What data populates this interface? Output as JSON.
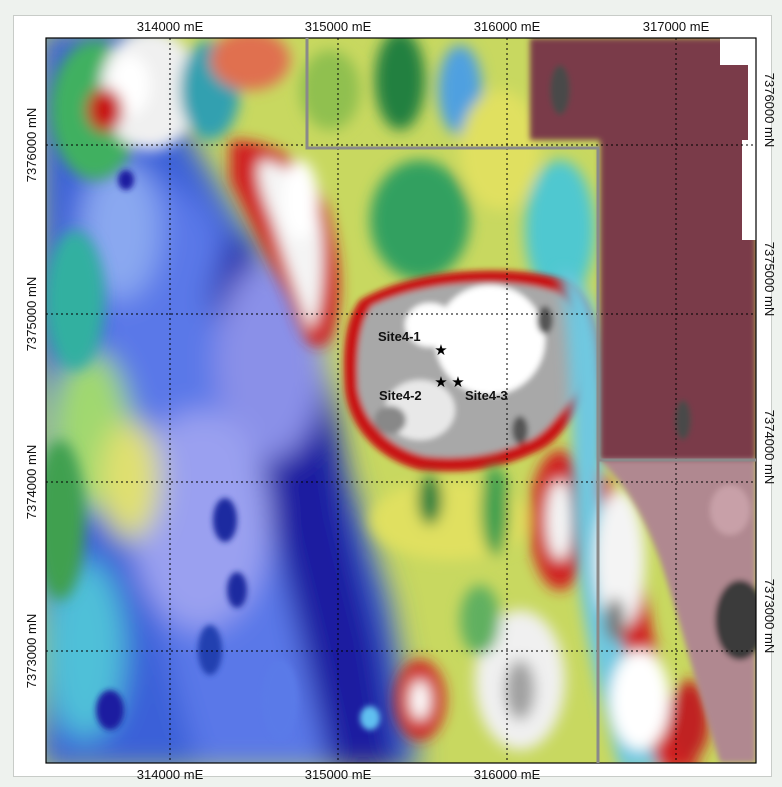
{
  "map": {
    "x_axis_labels": [
      "314000 mE",
      "315000 mE",
      "316000 mE",
      "317000 mE"
    ],
    "y_axis_labels": [
      "7376000 mN",
      "7375000 mN",
      "7374000 mN",
      "7373000 mN"
    ],
    "sites": [
      {
        "label": "Site4-1",
        "marker": "star"
      },
      {
        "label": "Site4-2",
        "marker": "star"
      },
      {
        "label": "Site4-3",
        "marker": "star"
      }
    ],
    "grid": "dotted",
    "colors": {
      "low": "#1a1aa0",
      "mid_low": "#50d0e0",
      "mid": "#7ec850",
      "mid_high": "#f0e060",
      "high": "#c01818",
      "highest": "#ffffff",
      "plateau": "#a0a0a0",
      "masked": "#7a3a4a",
      "boundary": "#8a8a8a"
    }
  }
}
